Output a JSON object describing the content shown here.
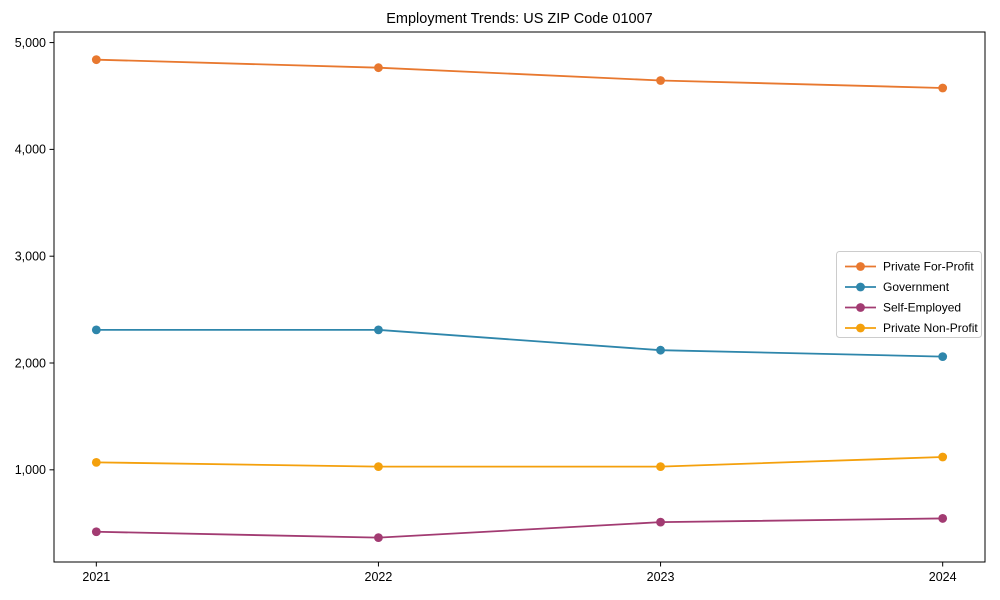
{
  "chart_data": {
    "type": "line",
    "title": "Employment Trends: US ZIP Code 01007",
    "xlabel": "",
    "ylabel": "",
    "x_categories": [
      "2021",
      "2022",
      "2023",
      "2024"
    ],
    "x_values": [
      2021,
      2022,
      2023,
      2024
    ],
    "series": [
      {
        "name": "Private For-Profit",
        "color": "#E8782F",
        "values": [
          4840,
          4765,
          4645,
          4575
        ]
      },
      {
        "name": "Government",
        "color": "#2E86AB",
        "values": [
          2310,
          2310,
          2120,
          2060
        ]
      },
      {
        "name": "Self-Employed",
        "color": "#A23B72",
        "values": [
          420,
          365,
          510,
          545
        ]
      },
      {
        "name": "Private Non-Profit",
        "color": "#F4A00C",
        "values": [
          1070,
          1030,
          1030,
          1120
        ]
      }
    ],
    "y_ticks": [
      {
        "value": 1000,
        "label": "1,000"
      },
      {
        "value": 2000,
        "label": "2,000"
      },
      {
        "value": 3000,
        "label": "3,000"
      },
      {
        "value": 4000,
        "label": "4,000"
      },
      {
        "value": 5000,
        "label": "5,000"
      }
    ],
    "xlim": [
      2020.85,
      2024.15
    ],
    "ylim": [
      137,
      5099
    ],
    "grid": false,
    "marker": "o",
    "line_width": 1.8,
    "marker_radius": 4.4,
    "legend": {
      "position": "center-right",
      "border_color": "#cccccc",
      "background": "#ffffff",
      "entries": [
        "Private For-Profit",
        "Government",
        "Self-Employed",
        "Private Non-Profit"
      ]
    },
    "colors": {
      "spine": "#000000",
      "background": "#ffffff",
      "text": "#000000"
    }
  }
}
